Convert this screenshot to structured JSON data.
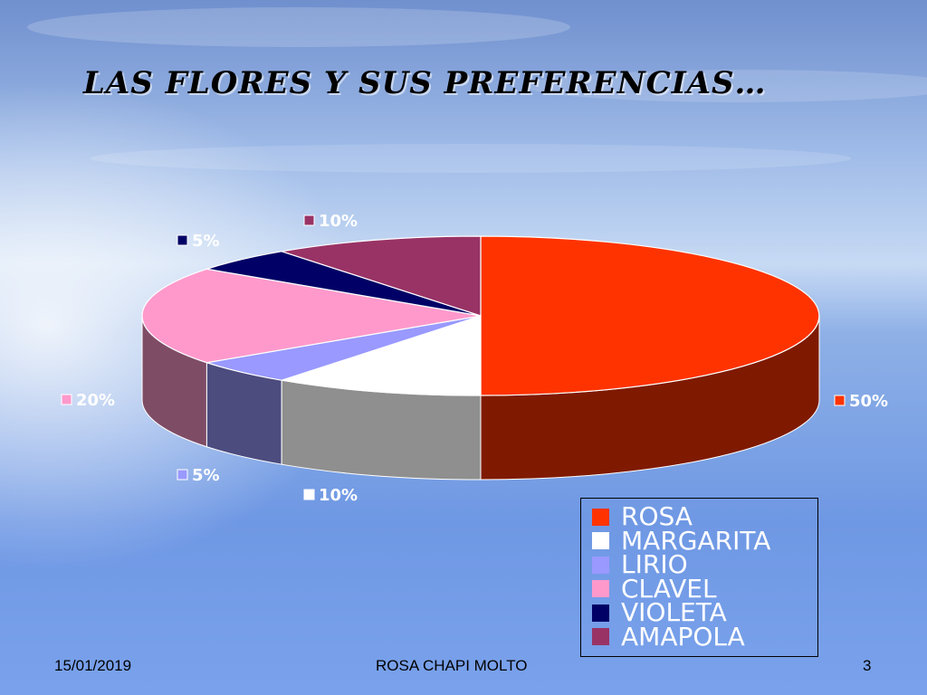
{
  "slide": {
    "title": "LAS FLORES Y SUS PREFERENCIAS…",
    "footer_date": "15/01/2019",
    "footer_author": "ROSA CHAPI MOLTO",
    "page_number": "3"
  },
  "chart_data": {
    "type": "pie",
    "style": "3d-exploded-oblique",
    "legend_position": "bottom-right",
    "slices": [
      {
        "label": "ROSA",
        "value": 50,
        "display": "50%",
        "color": "#ff3300",
        "side_color": "#7f1a00"
      },
      {
        "label": "MARGARITA",
        "value": 10,
        "display": "10%",
        "color": "#ffffff",
        "side_color": "#8f8f8f"
      },
      {
        "label": "LIRIO",
        "value": 5,
        "display": "5%",
        "color": "#9999ff",
        "side_color": "#4c4c7f"
      },
      {
        "label": "CLAVEL",
        "value": 20,
        "display": "20%",
        "color": "#ff99cc",
        "side_color": "#7f4c66"
      },
      {
        "label": "VIOLETA",
        "value": 5,
        "display": "5%",
        "color": "#000066",
        "side_color": "#000033"
      },
      {
        "label": "AMAPOLA",
        "value": 10,
        "display": "10%",
        "color": "#993366",
        "side_color": "#4c1933"
      }
    ]
  }
}
